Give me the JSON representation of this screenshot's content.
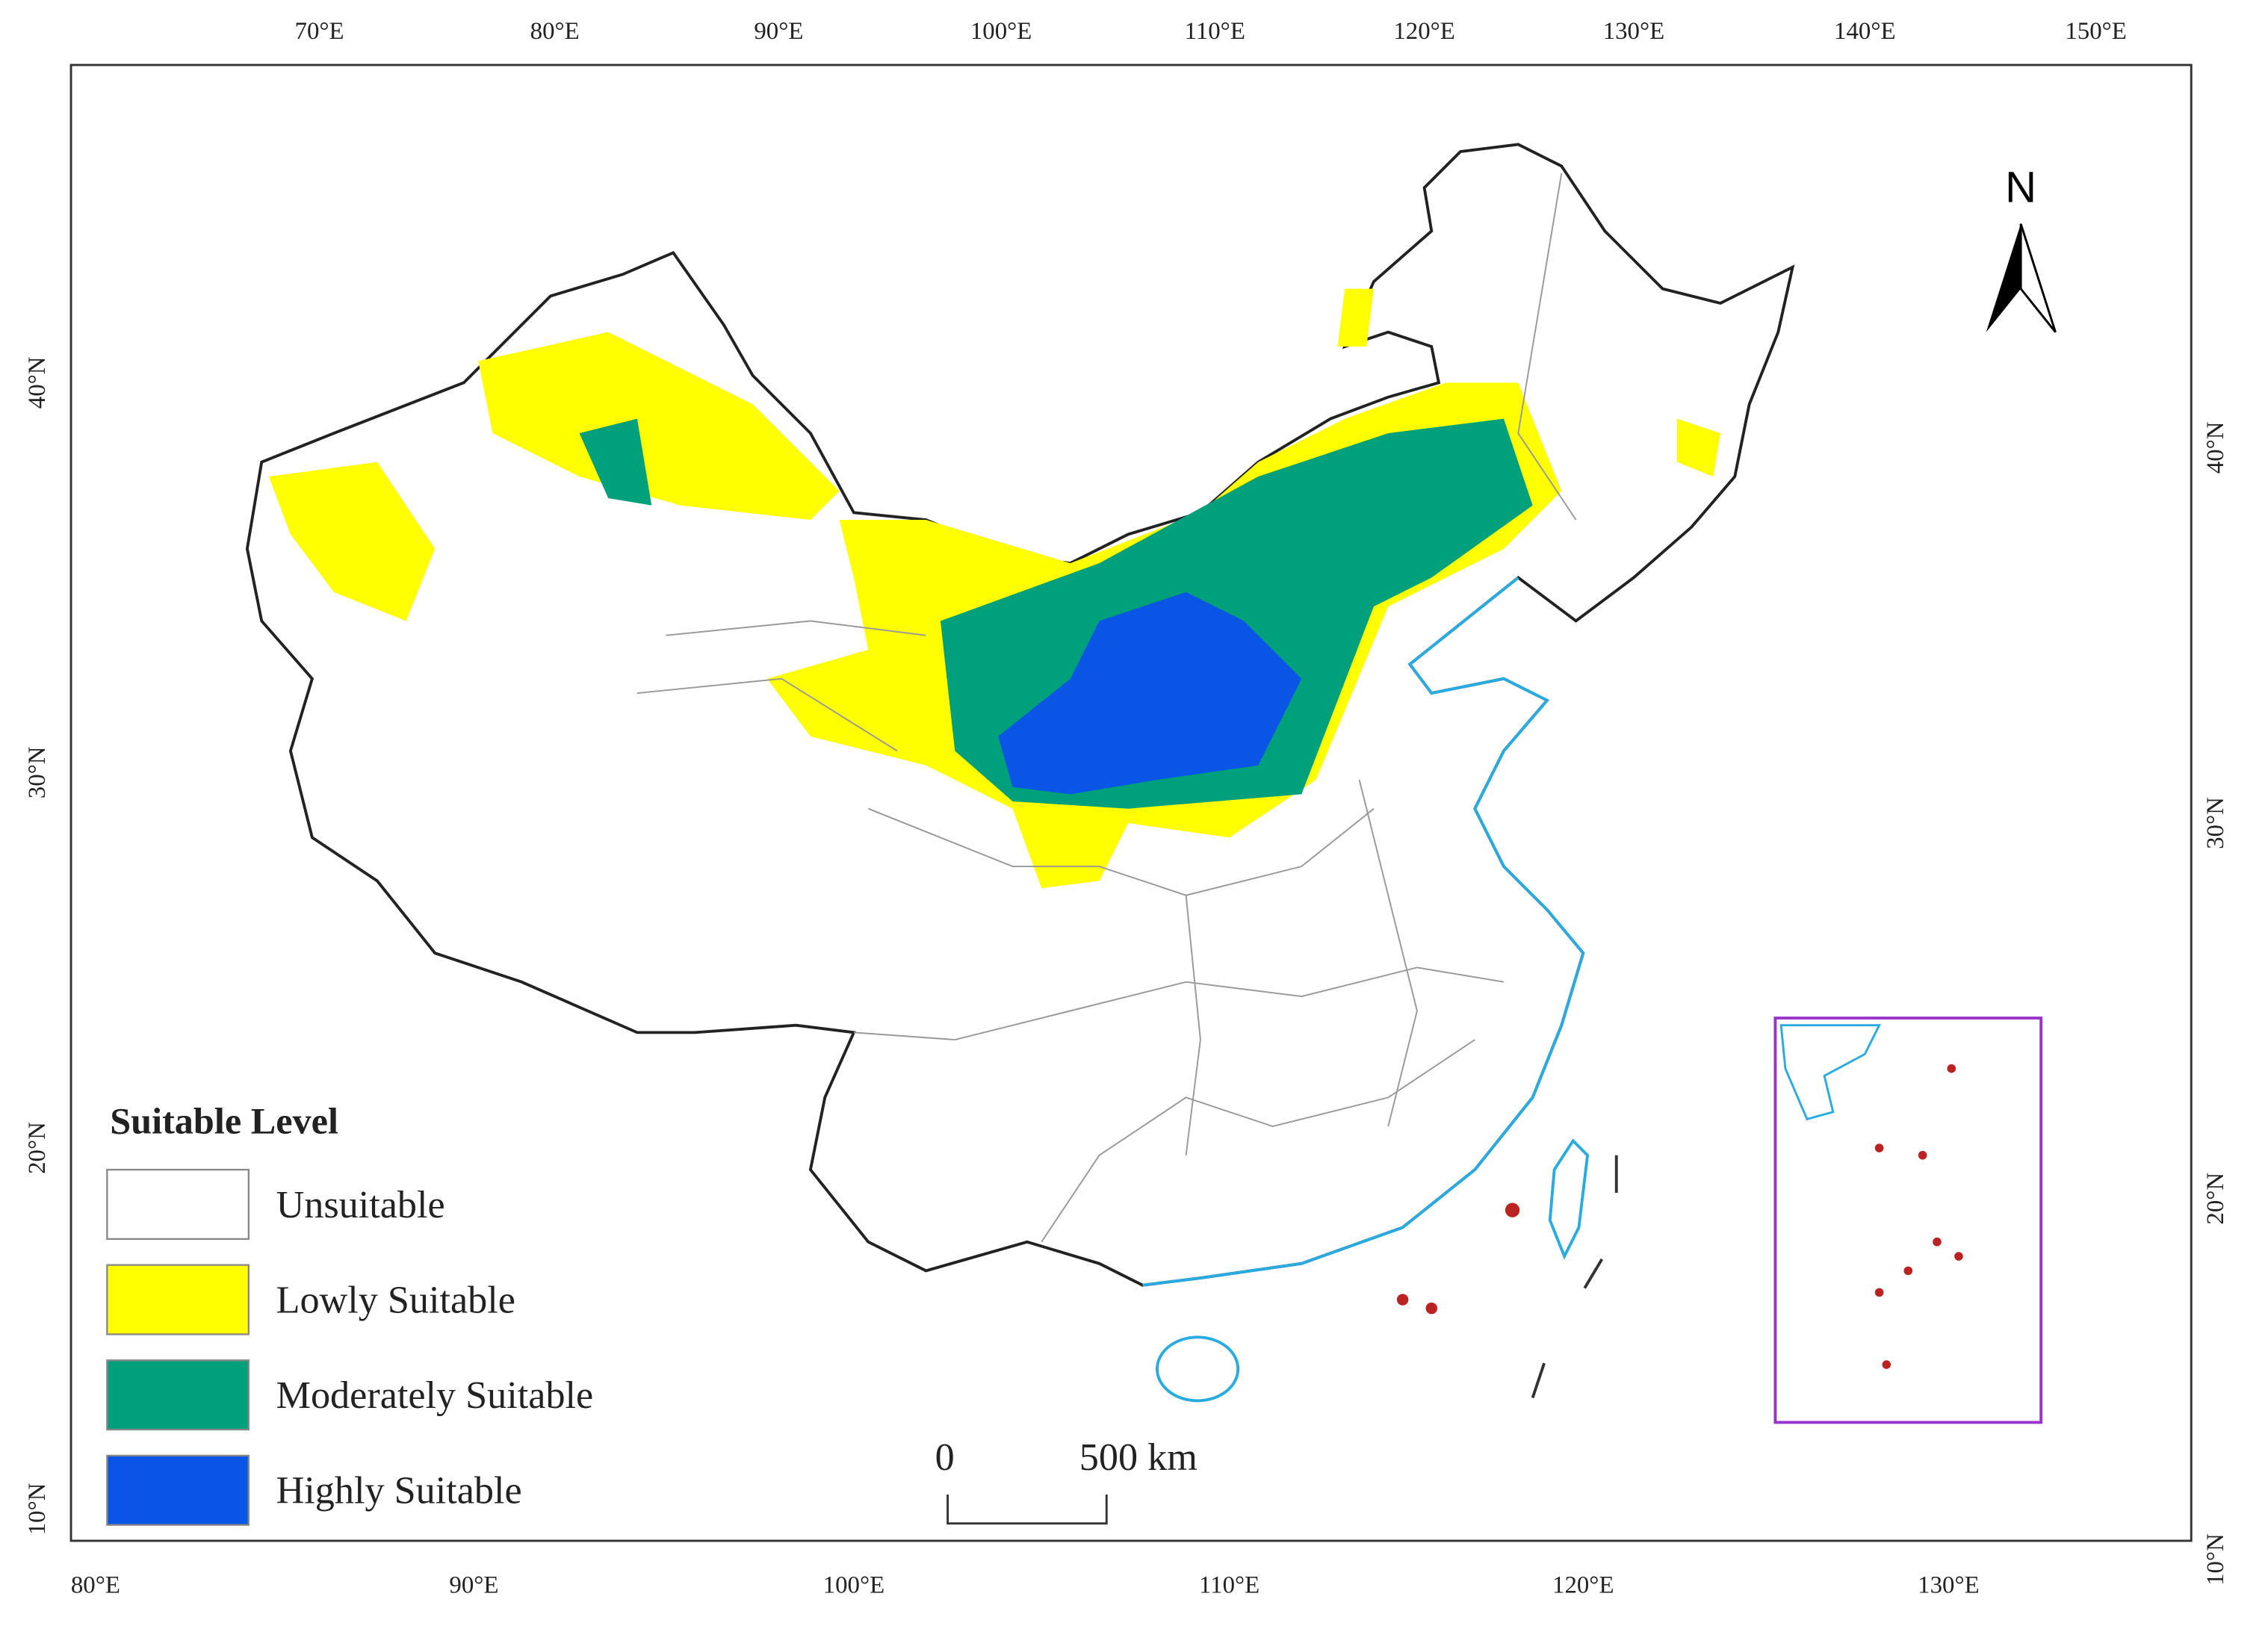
{
  "axes": {
    "top": [
      "70°E",
      "80°E",
      "90°E",
      "100°E",
      "110°E",
      "120°E",
      "130°E",
      "140°E",
      "150°E"
    ],
    "bottom": [
      "80°E",
      "90°E",
      "100°E",
      "110°E",
      "120°E",
      "130°E"
    ],
    "left": [
      "40°N",
      "30°N",
      "20°N",
      "10°N"
    ],
    "right": [
      "40°N",
      "30°N",
      "20°N",
      "10°N"
    ]
  },
  "north_arrow": "N",
  "scale_bar": {
    "start": "0",
    "end": "500 km"
  },
  "legend": {
    "title": "Suitable Level",
    "items": [
      {
        "label": "Unsuitable",
        "color": "#ffffff"
      },
      {
        "label": "Lowly Suitable",
        "color": "#ffff00"
      },
      {
        "label": "Moderately Suitable",
        "color": "#00a07c"
      },
      {
        "label": "Highly Suitable",
        "color": "#0a55e6"
      }
    ]
  }
}
